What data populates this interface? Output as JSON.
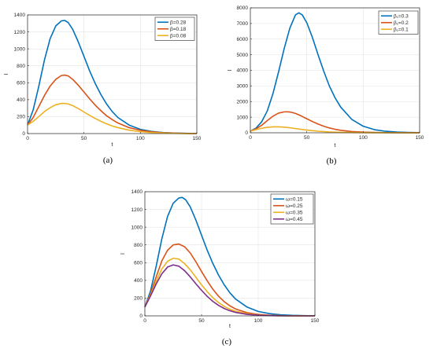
{
  "chart_data": [
    {
      "type": "line",
      "panel_label": "(a)",
      "xlabel": "t",
      "ylabel": "I",
      "xlim": [
        0,
        150
      ],
      "ylim": [
        0,
        1400
      ],
      "xticks": [
        0,
        50,
        100,
        150
      ],
      "yticks": [
        0,
        200,
        400,
        600,
        800,
        1000,
        1200,
        1400
      ],
      "grid": true,
      "legend_position": "top-right",
      "series": [
        {
          "name": "β=0.28",
          "color": "#0072BD",
          "x": [
            0,
            5,
            10,
            15,
            20,
            25,
            30,
            33,
            36,
            40,
            45,
            50,
            55,
            60,
            65,
            70,
            75,
            80,
            90,
            100,
            110,
            120,
            130,
            140,
            150
          ],
          "y": [
            100,
            280,
            560,
            870,
            1120,
            1270,
            1330,
            1335,
            1310,
            1230,
            1080,
            910,
            740,
            590,
            460,
            350,
            260,
            190,
            100,
            50,
            25,
            12,
            6,
            3,
            1
          ]
        },
        {
          "name": "β=0.18",
          "color": "#D95319",
          "x": [
            0,
            5,
            10,
            15,
            20,
            25,
            30,
            33,
            36,
            40,
            45,
            50,
            55,
            60,
            65,
            70,
            75,
            80,
            90,
            100,
            110,
            120,
            130,
            140,
            150
          ],
          "y": [
            100,
            190,
            320,
            450,
            560,
            640,
            685,
            690,
            680,
            640,
            570,
            490,
            410,
            335,
            270,
            210,
            165,
            125,
            70,
            38,
            20,
            10,
            5,
            2,
            1
          ]
        },
        {
          "name": "β=0.08",
          "color": "#EDB120",
          "x": [
            0,
            5,
            10,
            15,
            20,
            25,
            30,
            33,
            36,
            40,
            45,
            50,
            55,
            60,
            65,
            70,
            75,
            80,
            90,
            100,
            110,
            120,
            130,
            140,
            150
          ],
          "y": [
            100,
            145,
            200,
            260,
            305,
            340,
            355,
            355,
            350,
            330,
            295,
            255,
            215,
            178,
            145,
            115,
            90,
            70,
            40,
            22,
            12,
            6,
            3,
            1,
            0
          ]
        }
      ]
    },
    {
      "type": "line",
      "panel_label": "(b)",
      "xlabel": "t",
      "ylabel": "I",
      "xlim": [
        0,
        150
      ],
      "ylim": [
        0,
        8000
      ],
      "xticks": [
        0,
        50,
        100,
        150
      ],
      "yticks": [
        0,
        1000,
        2000,
        3000,
        4000,
        5000,
        6000,
        7000,
        8000
      ],
      "grid": true,
      "legend_position": "top-right",
      "series": [
        {
          "name": "β₁=0.3",
          "color": "#0072BD",
          "x": [
            0,
            5,
            10,
            15,
            20,
            25,
            30,
            35,
            40,
            43,
            46,
            50,
            55,
            60,
            65,
            70,
            75,
            80,
            90,
            100,
            110,
            120,
            130,
            140,
            150
          ],
          "y": [
            100,
            300,
            700,
            1400,
            2500,
            3900,
            5400,
            6700,
            7550,
            7680,
            7550,
            7050,
            6100,
            5000,
            3950,
            3000,
            2250,
            1650,
            850,
            420,
            200,
            95,
            45,
            20,
            10
          ]
        },
        {
          "name": "β₁=0.2",
          "color": "#D95319",
          "x": [
            0,
            5,
            10,
            15,
            20,
            25,
            30,
            33,
            36,
            40,
            45,
            50,
            55,
            60,
            65,
            70,
            75,
            80,
            90,
            100,
            110,
            120,
            130,
            140,
            150
          ],
          "y": [
            100,
            250,
            480,
            780,
            1060,
            1260,
            1340,
            1345,
            1320,
            1240,
            1080,
            900,
            720,
            560,
            420,
            310,
            225,
            160,
            80,
            40,
            20,
            10,
            5,
            2,
            1
          ]
        },
        {
          "name": "β₁=0.1",
          "color": "#EDB120",
          "x": [
            0,
            5,
            10,
            15,
            20,
            25,
            30,
            35,
            40,
            45,
            50,
            55,
            60,
            70,
            80,
            90,
            100,
            110,
            120,
            130,
            140,
            150
          ],
          "y": [
            100,
            200,
            290,
            350,
            380,
            380,
            360,
            320,
            270,
            220,
            175,
            135,
            100,
            55,
            28,
            14,
            7,
            3,
            2,
            1,
            0,
            0
          ]
        }
      ]
    },
    {
      "type": "line",
      "panel_label": "(c)",
      "xlabel": "t",
      "ylabel": "I",
      "xlim": [
        0,
        150
      ],
      "ylim": [
        0,
        1400
      ],
      "xticks": [
        0,
        50,
        100,
        150
      ],
      "yticks": [
        0,
        200,
        400,
        600,
        800,
        1000,
        1200,
        1400
      ],
      "grid": true,
      "legend_position": "top-right",
      "series": [
        {
          "name": "ω=0.15",
          "color": "#0072BD",
          "x": [
            0,
            5,
            10,
            15,
            20,
            25,
            30,
            33,
            36,
            40,
            45,
            50,
            55,
            60,
            65,
            70,
            75,
            80,
            90,
            100,
            110,
            120,
            130,
            140,
            150
          ],
          "y": [
            100,
            280,
            560,
            870,
            1120,
            1270,
            1330,
            1335,
            1310,
            1230,
            1080,
            910,
            740,
            590,
            460,
            350,
            260,
            190,
            100,
            50,
            25,
            12,
            6,
            3,
            1
          ]
        },
        {
          "name": "ω=0.25",
          "color": "#D95319",
          "x": [
            0,
            5,
            10,
            15,
            20,
            25,
            30,
            35,
            40,
            45,
            50,
            55,
            60,
            65,
            70,
            75,
            80,
            90,
            100,
            110,
            120,
            130,
            140,
            150
          ],
          "y": [
            100,
            250,
            440,
            620,
            740,
            800,
            810,
            780,
            710,
            610,
            500,
            395,
            300,
            222,
            160,
            113,
            78,
            36,
            16,
            7,
            3,
            1,
            0,
            0
          ]
        },
        {
          "name": "ω=0.35",
          "color": "#EDB120",
          "x": [
            0,
            5,
            10,
            15,
            20,
            25,
            30,
            35,
            40,
            45,
            50,
            55,
            60,
            65,
            70,
            75,
            80,
            90,
            100,
            110,
            120,
            130,
            140,
            150
          ],
          "y": [
            100,
            235,
            390,
            530,
            615,
            650,
            640,
            590,
            520,
            435,
            350,
            272,
            205,
            150,
            107,
            75,
            52,
            24,
            10,
            4,
            2,
            1,
            0,
            0
          ]
        },
        {
          "name": "ω=0.45",
          "color": "#7E2F8E",
          "x": [
            0,
            5,
            10,
            15,
            20,
            25,
            30,
            35,
            40,
            45,
            50,
            55,
            60,
            65,
            70,
            75,
            80,
            90,
            100,
            110,
            120,
            130,
            140,
            150
          ],
          "y": [
            100,
            225,
            360,
            475,
            550,
            575,
            560,
            510,
            440,
            362,
            288,
            220,
            163,
            118,
            83,
            58,
            39,
            17,
            7,
            3,
            1,
            0,
            0,
            0
          ]
        }
      ]
    }
  ]
}
